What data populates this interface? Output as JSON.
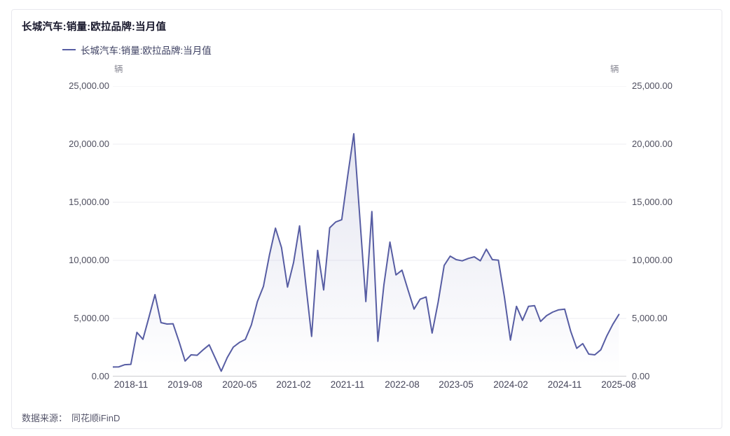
{
  "header": {
    "title": "长城汽车:销量:欧拉品牌:当月值"
  },
  "legend": {
    "label": "长城汽车:销量:欧拉品牌:当月值"
  },
  "footer": {
    "source_label": "数据来源：",
    "source_value": "同花顺iFinD"
  },
  "chart_data": {
    "type": "line",
    "title": "长城汽车:销量:欧拉品牌:当月值",
    "series_name": "长城汽车:销量:欧拉品牌:当月值",
    "unit_left": "辆",
    "unit_right": "辆",
    "ylim": [
      0,
      25000
    ],
    "y_ticks": [
      25000,
      20000,
      15000,
      10000,
      5000,
      0
    ],
    "y_tick_labels": [
      "25,000.00",
      "20,000.00",
      "15,000.00",
      "10,000.00",
      "5,000.00",
      "0.00"
    ],
    "x_tick_labels": [
      "2018-11",
      "2019-08",
      "2020-05",
      "2021-02",
      "2021-11",
      "2022-08",
      "2023-05",
      "2024-02",
      "2024-11",
      "2025-08"
    ],
    "grid": true,
    "legend_position": "top-left",
    "x": [
      "2018-08",
      "2018-09",
      "2018-10",
      "2018-11",
      "2018-12",
      "2019-01",
      "2019-02",
      "2019-03",
      "2019-04",
      "2019-05",
      "2019-06",
      "2019-07",
      "2019-08",
      "2019-09",
      "2019-10",
      "2019-11",
      "2019-12",
      "2020-01",
      "2020-02",
      "2020-03",
      "2020-04",
      "2020-05",
      "2020-06",
      "2020-07",
      "2020-08",
      "2020-09",
      "2020-10",
      "2020-11",
      "2020-12",
      "2021-01",
      "2021-02",
      "2021-03",
      "2021-04",
      "2021-05",
      "2021-06",
      "2021-07",
      "2021-08",
      "2021-09",
      "2021-10",
      "2021-11",
      "2021-12",
      "2022-01",
      "2022-02",
      "2022-03",
      "2022-04",
      "2022-05",
      "2022-06",
      "2022-07",
      "2022-08",
      "2022-09",
      "2022-10",
      "2022-11",
      "2022-12",
      "2023-01",
      "2023-02",
      "2023-03",
      "2023-04",
      "2023-05",
      "2023-06",
      "2023-07",
      "2023-08",
      "2023-09",
      "2023-10",
      "2023-11",
      "2023-12",
      "2024-01",
      "2024-02",
      "2024-03",
      "2024-04",
      "2024-05",
      "2024-06",
      "2024-07",
      "2024-08",
      "2024-09",
      "2024-10",
      "2024-11",
      "2024-12",
      "2025-01",
      "2025-02",
      "2025-03",
      "2025-04",
      "2025-05",
      "2025-06",
      "2025-07",
      "2025-08"
    ],
    "series": [
      {
        "name": "长城汽车:销量:欧拉品牌:当月值",
        "values": [
          820,
          830,
          1020,
          1050,
          3800,
          3200,
          5100,
          7050,
          4640,
          4520,
          4540,
          3000,
          1330,
          1870,
          1830,
          2300,
          2730,
          1590,
          460,
          1630,
          2530,
          2930,
          3190,
          4440,
          6450,
          7750,
          10460,
          12770,
          11100,
          7700,
          9800,
          12970,
          8100,
          3450,
          10860,
          7450,
          12800,
          13300,
          13500,
          17300,
          20900,
          13690,
          6450,
          14200,
          3030,
          7900,
          11570,
          8750,
          9150,
          7450,
          5800,
          6650,
          6850,
          3740,
          6400,
          9560,
          10360,
          10060,
          9960,
          10160,
          10300,
          9960,
          10960,
          10060,
          10020,
          6850,
          3130,
          6040,
          4840,
          6040,
          6100,
          4740,
          5240,
          5540,
          5740,
          5800,
          3900,
          2430,
          2830,
          1930,
          1870,
          2300,
          3500,
          4500,
          5340
        ]
      }
    ],
    "colors": {
      "line": "#575da3",
      "area_top": "rgba(87,93,163,0.16)",
      "area_bottom": "rgba(87,93,163,0.0)",
      "grid": "#ededf2",
      "axis": "#97979f"
    }
  }
}
